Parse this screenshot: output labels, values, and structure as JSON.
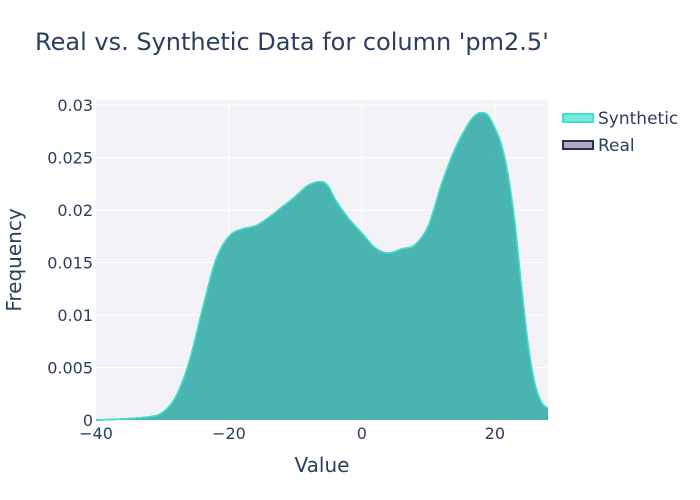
{
  "chart_data": {
    "type": "area",
    "title": "Real vs. Synthetic Data for column 'pm2.5'",
    "xlabel": "Value",
    "ylabel": "Frequency",
    "xlim": [
      -40,
      28
    ],
    "ylim": [
      0,
      0.0305
    ],
    "x_ticks": [
      -40,
      -20,
      0,
      20
    ],
    "x_tick_labels": [
      "−40",
      "−20",
      "0",
      "20"
    ],
    "y_ticks": [
      0,
      0.005,
      0.01,
      0.015,
      0.02,
      0.025,
      0.03
    ],
    "y_tick_labels": [
      "0",
      "0.005",
      "0.01",
      "0.015",
      "0.02",
      "0.025",
      "0.03"
    ],
    "grid": true,
    "legend_position": "top-right",
    "series": [
      {
        "name": "Synthetic",
        "color": "#40e0d0",
        "fill": "#40e0d0",
        "x": [
          -40,
          -36,
          -32,
          -30,
          -28,
          -26,
          -24,
          -22,
          -20,
          -18,
          -16,
          -14,
          -12,
          -10,
          -8,
          -6,
          -5,
          -4,
          -2,
          0,
          2,
          4,
          6,
          8,
          10,
          12,
          14,
          16,
          17,
          18,
          19,
          20,
          21,
          22,
          23,
          24,
          25,
          26,
          27,
          28
        ],
        "values": [
          0,
          0.0001,
          0.0003,
          0.0007,
          0.0022,
          0.0055,
          0.0105,
          0.0152,
          0.0175,
          0.0182,
          0.0185,
          0.0193,
          0.0203,
          0.0213,
          0.0224,
          0.0227,
          0.0222,
          0.021,
          0.0192,
          0.0178,
          0.0164,
          0.0159,
          0.0163,
          0.0167,
          0.0185,
          0.0225,
          0.0258,
          0.0282,
          0.029,
          0.0293,
          0.029,
          0.0278,
          0.0262,
          0.0233,
          0.0188,
          0.0127,
          0.0072,
          0.0035,
          0.0017,
          0.0011
        ]
      },
      {
        "name": "Real",
        "color": "#2f2f4f",
        "fill": "#8a87a8",
        "x": [
          -40,
          -36,
          -32,
          -30,
          -28,
          -26,
          -24,
          -22,
          -20,
          -18,
          -16,
          -14,
          -12,
          -10,
          -8,
          -6,
          -5,
          -4,
          -2,
          0,
          2,
          4,
          6,
          8,
          10,
          12,
          14,
          16,
          17,
          18,
          19,
          20,
          21,
          22,
          23,
          24,
          25,
          26,
          27,
          28
        ],
        "values": [
          0,
          0.0001,
          0.0003,
          0.0007,
          0.0022,
          0.0055,
          0.0105,
          0.0152,
          0.0175,
          0.0182,
          0.0185,
          0.0193,
          0.0203,
          0.0213,
          0.0224,
          0.0227,
          0.0222,
          0.021,
          0.0192,
          0.0178,
          0.0164,
          0.0159,
          0.0163,
          0.0167,
          0.0185,
          0.0225,
          0.0258,
          0.0282,
          0.029,
          0.0293,
          0.029,
          0.0278,
          0.0262,
          0.0233,
          0.0188,
          0.0127,
          0.0072,
          0.0035,
          0.0017,
          0.0011
        ]
      }
    ]
  }
}
